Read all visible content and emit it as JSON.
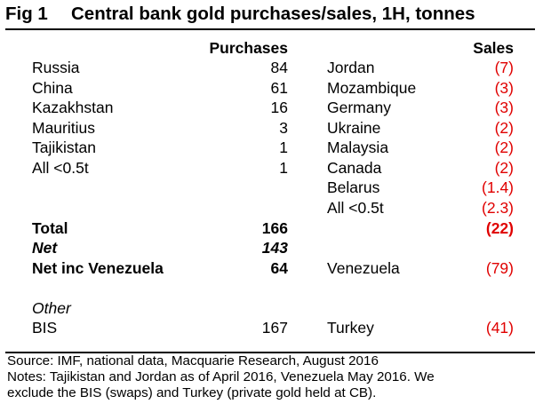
{
  "title": {
    "fig": "Fig 1",
    "text": "Central bank gold purchases/sales, 1H, tonnes"
  },
  "headers": {
    "purchases": "Purchases",
    "sales": "Sales"
  },
  "purchases": [
    {
      "country": "Russia",
      "value": "84"
    },
    {
      "country": "China",
      "value": "61"
    },
    {
      "country": "Kazakhstan",
      "value": "16"
    },
    {
      "country": "Mauritius",
      "value": "3"
    },
    {
      "country": "Tajikistan",
      "value": "1"
    },
    {
      "country": "All <0.5t",
      "value": "1"
    }
  ],
  "sales": [
    {
      "country": "Jordan",
      "value": "(7)"
    },
    {
      "country": "Mozambique",
      "value": "(3)"
    },
    {
      "country": "Germany",
      "value": "(3)"
    },
    {
      "country": "Ukraine",
      "value": "(2)"
    },
    {
      "country": "Malaysia",
      "value": "(2)"
    },
    {
      "country": "Canada",
      "value": "(2)"
    },
    {
      "country": "Belarus",
      "value": "(1.4)"
    },
    {
      "country": "All <0.5t",
      "value": "(2.3)"
    }
  ],
  "totals": {
    "total_label": "Total",
    "total_purchases": "166",
    "total_sales": "(22)",
    "net_label": "Net",
    "net_value": "143",
    "net_inc_label": "Net inc Venezuela",
    "net_inc_value": "64",
    "venezuela_label": "Venezuela",
    "venezuela_value": "(79)"
  },
  "other": {
    "label": "Other",
    "bis_label": "BIS",
    "bis_value": "167",
    "turkey_label": "Turkey",
    "turkey_value": "(41)"
  },
  "footer": {
    "source": "Source: IMF, national data, Macquarie Research, August 2016",
    "notes_line1": "Notes: Tajikistan and Jordan as of April 2016, Venezuela May 2016. We",
    "notes_line2": "exclude the BIS (swaps) and Turkey (private gold held at CB)."
  },
  "colors": {
    "negative": "#e00000",
    "text": "#000000"
  }
}
